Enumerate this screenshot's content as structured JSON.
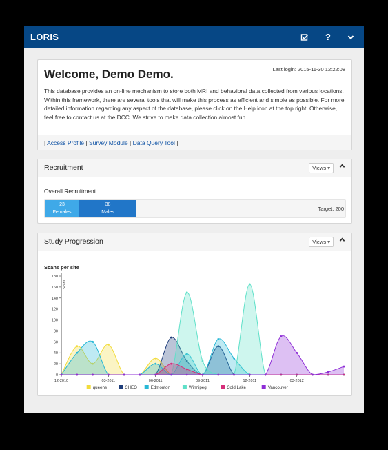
{
  "navbar": {
    "brand": "LORIS",
    "icons": [
      "edit-check-icon",
      "help-icon",
      "chevron-down-icon"
    ],
    "help_label": "?"
  },
  "welcome": {
    "title": "Welcome, Demo Demo.",
    "last_login": "Last login: 2015-11-30 12:22:08",
    "body": "This database provides an on-line mechanism to store both MRI and behavioral data collected from various locations. Within this framework, there are several tools that will make this process as efficient and simple as possible. For more detailed information regarding any aspect of the database, please click on the Help icon at the top right. Otherwise, feel free to contact us at the DCC. We strive to make data collection almost fun.",
    "links": [
      "Access Profile",
      "Survey Module",
      "Data Query Tool"
    ],
    "separator": "|"
  },
  "recruitment": {
    "title": "Recruitment",
    "views_label": "Views",
    "overall_label": "Overall Recruitment",
    "target": 200,
    "target_label": "Target: 200",
    "females": {
      "count": "23",
      "label": "Females",
      "value": 23,
      "color": "#3fa9e8"
    },
    "males": {
      "count": "38",
      "label": "Males",
      "value": 38,
      "color": "#2176c8"
    }
  },
  "study": {
    "title": "Study Progression",
    "views_label": "Views"
  },
  "chart_data": {
    "type": "area",
    "title": "Scans per site",
    "ylabel": "Scans",
    "xlabel": "",
    "ylim": [
      0,
      180
    ],
    "yticks": [
      0,
      20,
      40,
      60,
      80,
      100,
      120,
      140,
      160,
      180
    ],
    "x": [
      "12-2010",
      "01-2011",
      "02-2011",
      "03-2011",
      "04-2011",
      "05-2011",
      "06-2011",
      "07-2011",
      "08-2011",
      "09-2011",
      "10-2011",
      "11-2011",
      "12-2011",
      "01-2012",
      "02-2012",
      "03-2012",
      "04-2012",
      "05-2012",
      "06-2012"
    ],
    "xtick_labels": [
      "12-2010",
      "03-2011",
      "06-2011",
      "09-2011",
      "12-2011",
      "03-2012"
    ],
    "legend_position": "bottom",
    "series": [
      {
        "name": "queens",
        "color": "#f2dc3c",
        "values": [
          0,
          52,
          20,
          55,
          0,
          0,
          30,
          0,
          0,
          0,
          0,
          0,
          0,
          0,
          0,
          0,
          0,
          0,
          0
        ]
      },
      {
        "name": "CHEO",
        "color": "#1f3d7a",
        "values": [
          0,
          0,
          0,
          0,
          0,
          0,
          0,
          68,
          25,
          0,
          52,
          0,
          0,
          0,
          0,
          0,
          0,
          0,
          0
        ]
      },
      {
        "name": "Edmonton",
        "color": "#28b8d6",
        "values": [
          0,
          40,
          60,
          0,
          0,
          0,
          20,
          0,
          38,
          0,
          65,
          30,
          0,
          0,
          0,
          0,
          0,
          0,
          0
        ]
      },
      {
        "name": "Winnipeg",
        "color": "#5ee0c8",
        "values": [
          0,
          0,
          0,
          0,
          0,
          0,
          0,
          0,
          150,
          25,
          0,
          0,
          165,
          0,
          0,
          0,
          0,
          0,
          0
        ]
      },
      {
        "name": "Cold Lake",
        "color": "#d62e7a",
        "values": [
          0,
          0,
          0,
          0,
          0,
          0,
          0,
          20,
          10,
          0,
          0,
          0,
          0,
          0,
          0,
          0,
          0,
          0,
          0
        ]
      },
      {
        "name": "Vancouver",
        "color": "#8e2dd6",
        "values": [
          0,
          0,
          0,
          0,
          0,
          0,
          0,
          0,
          0,
          0,
          0,
          0,
          0,
          0,
          70,
          40,
          0,
          5,
          15
        ]
      }
    ]
  }
}
